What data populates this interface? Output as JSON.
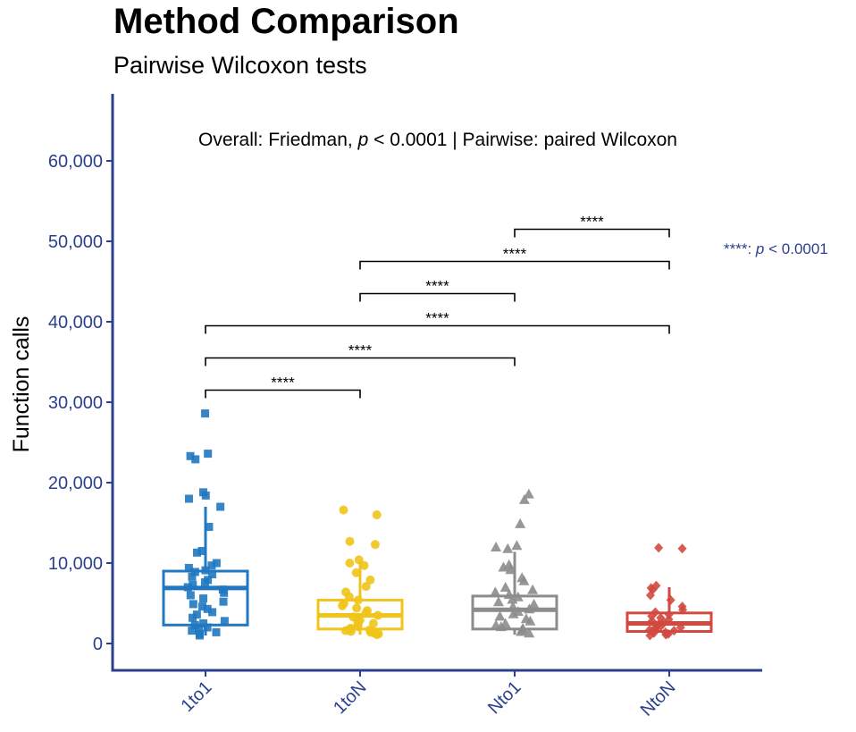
{
  "chart_data": {
    "type": "boxplot",
    "title": "Method Comparison",
    "subtitle": "Pairwise Wilcoxon tests",
    "ylabel": "Function calls",
    "xlabel": "",
    "ylim": [
      -3000,
      68000
    ],
    "yticks": [
      0,
      10000,
      20000,
      30000,
      40000,
      50000,
      60000
    ],
    "ytick_labels": [
      "0",
      "10,000",
      "20,000",
      "30,000",
      "40,000",
      "50,000",
      "60,000"
    ],
    "categories": [
      "1to1",
      "1toN",
      "Nto1",
      "NtoN"
    ],
    "colors": [
      "#1f78c1",
      "#f0c419",
      "#8c8c8c",
      "#d1493f"
    ],
    "markers": [
      "square",
      "circle",
      "triangle",
      "diamond"
    ],
    "boxes": [
      {
        "q1": 2300,
        "median": 6900,
        "q3": 9000,
        "whisker_low": 1000,
        "whisker_high": 17000
      },
      {
        "q1": 1800,
        "median": 3500,
        "q3": 5400,
        "whisker_low": 1100,
        "whisker_high": 10300
      },
      {
        "q1": 1800,
        "median": 4200,
        "q3": 5900,
        "whisker_low": 1100,
        "whisker_high": 11400
      },
      {
        "q1": 1500,
        "median": 2500,
        "q3": 3800,
        "whisker_low": 1000,
        "whisker_high": 7000
      }
    ],
    "points": [
      [
        28600,
        23600,
        23300,
        22900,
        18800,
        18400,
        18000,
        17000,
        14500,
        11500,
        11300,
        10000,
        9700,
        9400,
        9100,
        8900,
        8600,
        8300,
        7900,
        7600,
        7300,
        7000,
        6700,
        6300,
        6000,
        5600,
        5200,
        4900,
        4600,
        4300,
        3900,
        3600,
        3200,
        2800,
        2500,
        2300,
        2000,
        1800,
        1600,
        1400,
        1200,
        1000
      ],
      [
        16600,
        16000,
        12700,
        12300,
        10400,
        10000,
        9700,
        8800,
        7900,
        7100,
        6400,
        5800,
        5400,
        5000,
        4700,
        4400,
        4100,
        3800,
        3500,
        3300,
        3100,
        2900,
        2700,
        2500,
        2300,
        2100,
        1900,
        1800,
        1700,
        1600,
        1500,
        1400,
        1300,
        1200,
        1100
      ],
      [
        18600,
        17900,
        14900,
        12200,
        12000,
        11800,
        9800,
        9500,
        9200,
        8200,
        7800,
        7000,
        6700,
        6400,
        6100,
        5800,
        5500,
        5200,
        4900,
        4600,
        4300,
        4000,
        3700,
        3400,
        3100,
        2800,
        2500,
        2300,
        2100,
        1900,
        1700,
        1500,
        1300
      ],
      [
        11900,
        11800,
        7200,
        6900,
        6700,
        6000,
        5400,
        4600,
        4200,
        3900,
        3600,
        3400,
        3200,
        3000,
        2800,
        2600,
        2400,
        2200,
        2000,
        1900,
        1800,
        1700,
        1600,
        1500,
        1400,
        1300,
        1200,
        1100,
        1000
      ]
    ],
    "comparisons": [
      {
        "from": 0,
        "to": 1,
        "y": 31500,
        "label": "****"
      },
      {
        "from": 0,
        "to": 2,
        "y": 35500,
        "label": "****"
      },
      {
        "from": 0,
        "to": 3,
        "y": 39500,
        "label": "****"
      },
      {
        "from": 1,
        "to": 2,
        "y": 43500,
        "label": "****"
      },
      {
        "from": 1,
        "to": 3,
        "y": 47500,
        "label": "****"
      },
      {
        "from": 2,
        "to": 3,
        "y": 51500,
        "label": "****"
      }
    ],
    "annotation": {
      "prefix": "Overall: Friedman, ",
      "p_symbol": "p",
      "suffix": " < 0.0001 | Pairwise: paired Wilcoxon"
    },
    "legend_note": {
      "prefix": "****: ",
      "p_symbol": "p",
      "suffix": " < 0.0001"
    },
    "axis_color": "#2b3f8f",
    "grid": false
  }
}
